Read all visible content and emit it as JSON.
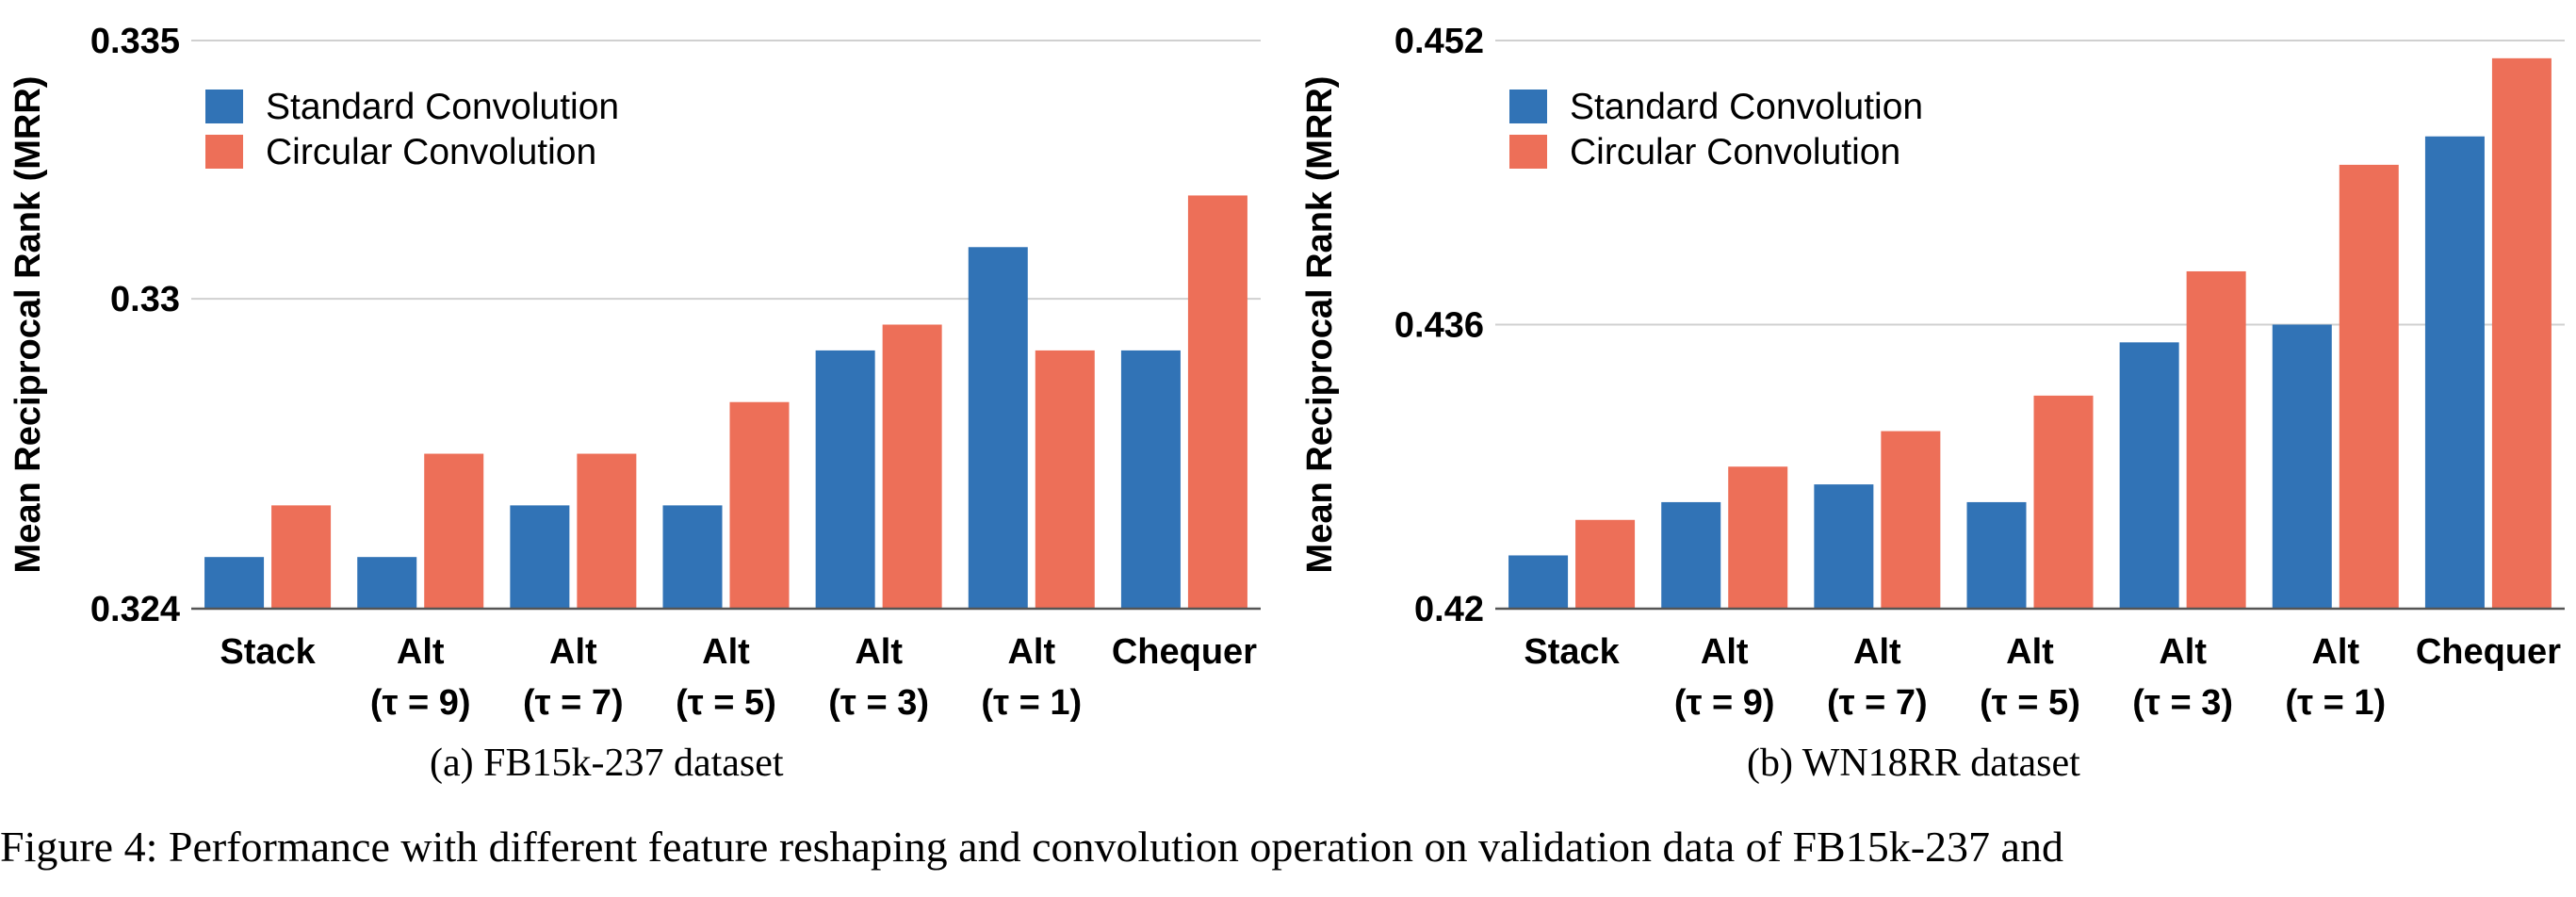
{
  "colors": {
    "standard": "#3173b6",
    "circular": "#ed6f58",
    "grid": "#d0d0d0",
    "axis": "#555555"
  },
  "chart_data": [
    {
      "type": "bar",
      "caption": "(a) FB15k-237 dataset",
      "ylabel": "Mean Reciprocal Rank (MRR)",
      "ylim": [
        0.324,
        0.335
      ],
      "yticks": [
        "0.324",
        "0.33",
        "0.335"
      ],
      "ytick_values": [
        0.324,
        0.33,
        0.335
      ],
      "categories": [
        [
          "Stack",
          ""
        ],
        [
          "Alt",
          "(τ = 9)"
        ],
        [
          "Alt",
          "(τ = 7)"
        ],
        [
          "Alt",
          "(τ = 5)"
        ],
        [
          "Alt",
          "(τ = 3)"
        ],
        [
          "Alt",
          "(τ = 1)"
        ],
        [
          "Chequer",
          ""
        ]
      ],
      "legend": {
        "position": "top-left",
        "entries": [
          "Standard Convolution",
          "Circular Convolution"
        ]
      },
      "series": [
        {
          "name": "Standard Convolution",
          "values": [
            0.325,
            0.325,
            0.326,
            0.326,
            0.329,
            0.331,
            0.329
          ]
        },
        {
          "name": "Circular Convolution",
          "values": [
            0.326,
            0.327,
            0.327,
            0.328,
            0.3295,
            0.329,
            0.332
          ]
        }
      ]
    },
    {
      "type": "bar",
      "caption": "(b) WN18RR dataset",
      "ylabel": "Mean Reciprocal Rank (MRR)",
      "ylim": [
        0.42,
        0.452
      ],
      "yticks": [
        "0.42",
        "0.436",
        "0.452"
      ],
      "ytick_values": [
        0.42,
        0.436,
        0.452
      ],
      "categories": [
        [
          "Stack",
          ""
        ],
        [
          "Alt",
          "(τ = 9)"
        ],
        [
          "Alt",
          "(τ = 7)"
        ],
        [
          "Alt",
          "(τ = 5)"
        ],
        [
          "Alt",
          "(τ = 3)"
        ],
        [
          "Alt",
          "(τ = 1)"
        ],
        [
          "Chequer",
          ""
        ]
      ],
      "legend": {
        "position": "top-left",
        "entries": [
          "Standard Convolution",
          "Circular Convolution"
        ]
      },
      "series": [
        {
          "name": "Standard Convolution",
          "values": [
            0.423,
            0.426,
            0.427,
            0.426,
            0.435,
            0.436,
            0.4466
          ]
        },
        {
          "name": "Circular Convolution",
          "values": [
            0.425,
            0.428,
            0.43,
            0.432,
            0.439,
            0.445,
            0.451
          ]
        }
      ]
    }
  ],
  "figure_caption": "Figure 4: Performance with different feature reshaping and convolution operation on validation data of FB15k-237 and"
}
